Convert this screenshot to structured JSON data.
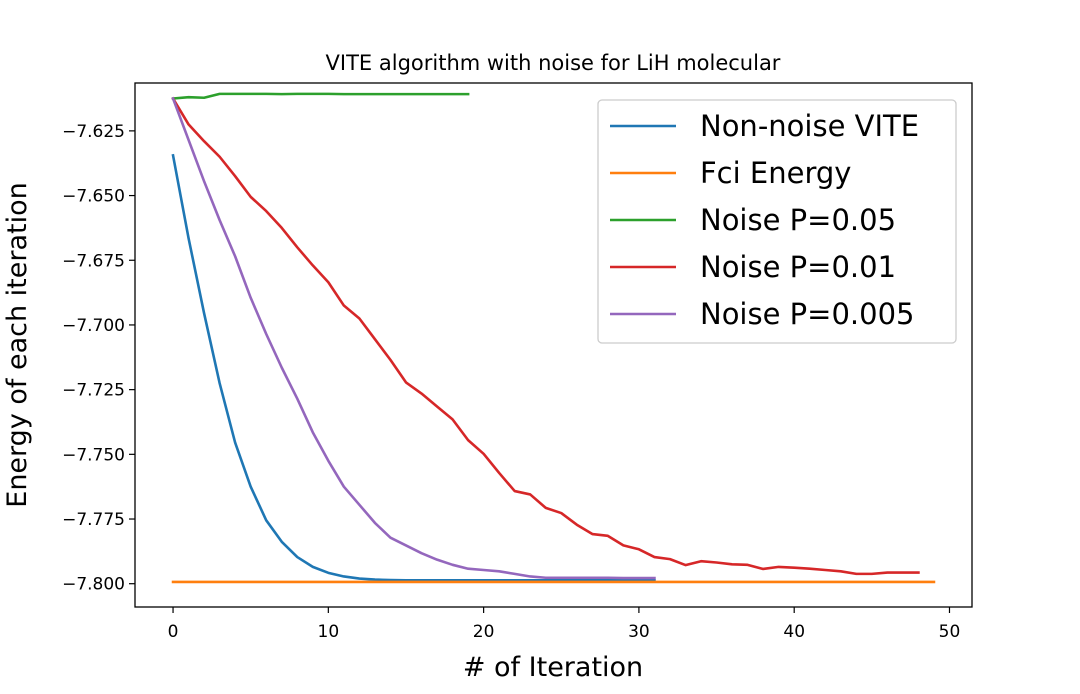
{
  "chart_data": {
    "type": "line",
    "title": "VITE algorithm with noise for LiH molecular",
    "xlabel": "# of Iteration",
    "ylabel": "Energy of each iteration",
    "xlim": [
      -2.45,
      51.45
    ],
    "ylim": [
      -7.809,
      -7.6065
    ],
    "xticks": [
      0,
      10,
      20,
      30,
      40,
      50
    ],
    "xtick_labels": [
      "0",
      "10",
      "20",
      "30",
      "40",
      "50"
    ],
    "yticks": [
      -7.625,
      -7.65,
      -7.675,
      -7.7,
      -7.725,
      -7.75,
      -7.775,
      -7.8
    ],
    "ytick_labels": [
      "−7.625",
      "−7.650",
      "−7.675",
      "−7.700",
      "−7.725",
      "−7.750",
      "−7.775",
      "−7.800"
    ],
    "grid": false,
    "legend_position": "top-right",
    "series": [
      {
        "name": "Non-noise VITE",
        "color": "#1f77b4",
        "x": [
          0,
          1,
          2,
          3,
          4,
          5,
          6,
          7,
          8,
          9,
          10,
          11,
          12,
          13,
          14,
          15,
          16,
          17,
          18,
          19,
          20,
          21,
          22,
          23,
          24,
          25,
          26,
          27,
          28,
          29,
          30,
          31
        ],
        "values": [
          -7.6345,
          -7.6665,
          -7.6955,
          -7.7225,
          -7.7455,
          -7.7625,
          -7.7755,
          -7.7838,
          -7.7897,
          -7.7935,
          -7.7958,
          -7.7972,
          -7.798,
          -7.7984,
          -7.7986,
          -7.7987,
          -7.7987,
          -7.7987,
          -7.7987,
          -7.7987,
          -7.7987,
          -7.7987,
          -7.7987,
          -7.7987,
          -7.7987,
          -7.7987,
          -7.7987,
          -7.7987,
          -7.7987,
          -7.7987,
          -7.7987,
          -7.7987
        ]
      },
      {
        "name": "Fci Energy",
        "color": "#ff7f0e",
        "x": [
          0,
          49
        ],
        "values": [
          -7.7993,
          -7.7993
        ]
      },
      {
        "name": "Noise P=0.05",
        "color": "#2ca02c",
        "x": [
          0,
          1,
          2,
          3,
          4,
          5,
          6,
          7,
          8,
          9,
          10,
          11,
          12,
          13,
          14,
          15,
          16,
          17,
          18,
          19
        ],
        "values": [
          -7.6125,
          -7.612,
          -7.6122,
          -7.6107,
          -7.6107,
          -7.6107,
          -7.6107,
          -7.6108,
          -7.6107,
          -7.6107,
          -7.6107,
          -7.6108,
          -7.6108,
          -7.6108,
          -7.6108,
          -7.6108,
          -7.6108,
          -7.6108,
          -7.6108,
          -7.6108
        ]
      },
      {
        "name": "Noise P=0.01",
        "color": "#d62728",
        "x": [
          0,
          1,
          2,
          3,
          4,
          5,
          6,
          7,
          8,
          9,
          10,
          11,
          12,
          13,
          14,
          15,
          16,
          17,
          18,
          19,
          20,
          21,
          22,
          23,
          24,
          25,
          26,
          27,
          28,
          29,
          30,
          31,
          32,
          33,
          34,
          35,
          36,
          37,
          38,
          39,
          40,
          41,
          42,
          43,
          44,
          45,
          46,
          47,
          48
        ],
        "values": [
          -7.6125,
          -7.6225,
          -7.629,
          -7.635,
          -7.6425,
          -7.6505,
          -7.656,
          -7.6625,
          -7.67,
          -7.677,
          -7.6835,
          -7.6925,
          -7.6975,
          -7.7055,
          -7.7135,
          -7.7222,
          -7.7265,
          -7.7315,
          -7.7365,
          -7.7445,
          -7.7498,
          -7.7572,
          -7.7642,
          -7.7655,
          -7.7707,
          -7.7727,
          -7.7772,
          -7.7808,
          -7.7815,
          -7.7852,
          -7.7867,
          -7.7897,
          -7.7905,
          -7.7928,
          -7.7913,
          -7.7918,
          -7.7925,
          -7.7927,
          -7.7943,
          -7.7935,
          -7.7938,
          -7.7942,
          -7.7947,
          -7.7952,
          -7.7962,
          -7.7962,
          -7.7957,
          -7.7957,
          -7.7957
        ]
      },
      {
        "name": "Noise P=0.005",
        "color": "#9467bd",
        "x": [
          0,
          1,
          2,
          3,
          4,
          5,
          6,
          7,
          8,
          9,
          10,
          11,
          12,
          13,
          14,
          15,
          16,
          17,
          18,
          19,
          20,
          21,
          22,
          23,
          24,
          25,
          26,
          27,
          28,
          29,
          30,
          31
        ],
        "values": [
          -7.6125,
          -7.6285,
          -7.6445,
          -7.6595,
          -7.6735,
          -7.6895,
          -7.7035,
          -7.7165,
          -7.7285,
          -7.7415,
          -7.7525,
          -7.7625,
          -7.7695,
          -7.7765,
          -7.7822,
          -7.7852,
          -7.7882,
          -7.7907,
          -7.7927,
          -7.7942,
          -7.7947,
          -7.7952,
          -7.7962,
          -7.7972,
          -7.7977,
          -7.7977,
          -7.7977,
          -7.7977,
          -7.7977,
          -7.7978,
          -7.7978,
          -7.7978
        ]
      }
    ]
  }
}
